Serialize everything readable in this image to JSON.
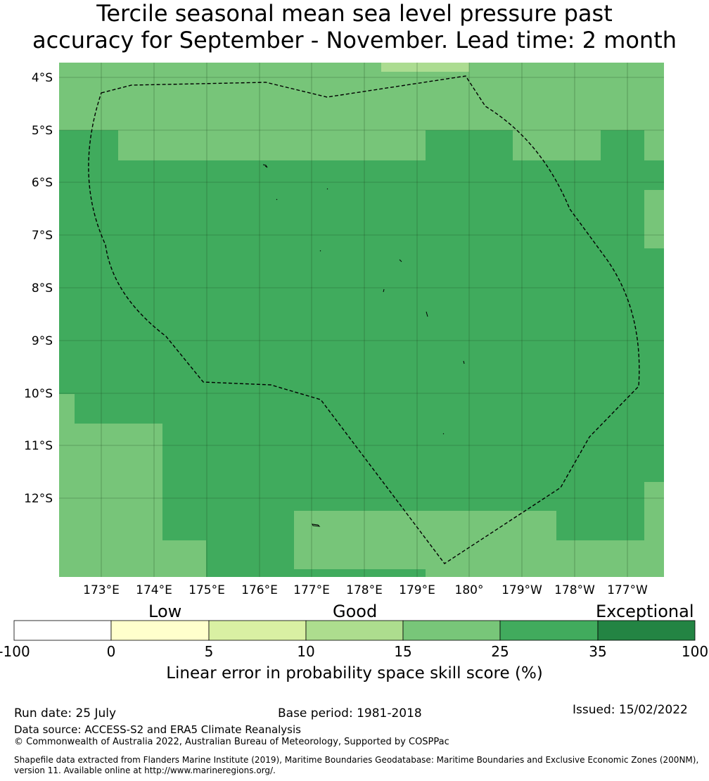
{
  "title": {
    "line1": "Tercile seasonal mean sea level pressure past",
    "line2": "accuracy for September - November. Lead time: 2 month"
  },
  "map": {
    "lat_ticks": [
      "4°S",
      "5°S",
      "6°S",
      "7°S",
      "8°S",
      "9°S",
      "10°S",
      "11°S",
      "12°S"
    ],
    "lon_ticks": [
      "173°E",
      "174°E",
      "175°E",
      "176°E",
      "177°E",
      "178°E",
      "179°E",
      "180°",
      "179°W",
      "178°W",
      "177°W"
    ],
    "colors": {
      "c10_15": "#acdc91",
      "c15_25": "#77c579",
      "c25_35": "#40ab5d",
      "boundary": "#000000",
      "grid": "#1a3f1a"
    }
  },
  "colorbar": {
    "categories": {
      "low": "Low",
      "good": "Good",
      "exceptional": "Exceptional"
    },
    "ticks": [
      "-100",
      "0",
      "5",
      "10",
      "15",
      "25",
      "35",
      "100"
    ],
    "colors": [
      "#ffffff",
      "#ffffcc",
      "#d9f0a3",
      "#addd8e",
      "#78c679",
      "#41ab5d",
      "#238443"
    ],
    "label": "Linear error in probability space skill score (%)"
  },
  "footer": {
    "run_date": "Run date: 25 July",
    "base_period": "Base period: 1981-2018",
    "issued": "Issued: 15/02/2022",
    "data_source": "Data source: ACCESS-S2 and ERA5 Climate Reanalysis",
    "copyright": "© Commonwealth of Australia 2022, Australian Bureau of Meteorology, Supported by COSPPac",
    "shapefile": "Shapefile data extracted from Flanders Marine Institute (2019), Maritime Boundaries Geodatabase: Maritime Boundaries and Exclusive Economic Zones (200NM), version 11. Available online at http://www.marineregions.org/."
  }
}
